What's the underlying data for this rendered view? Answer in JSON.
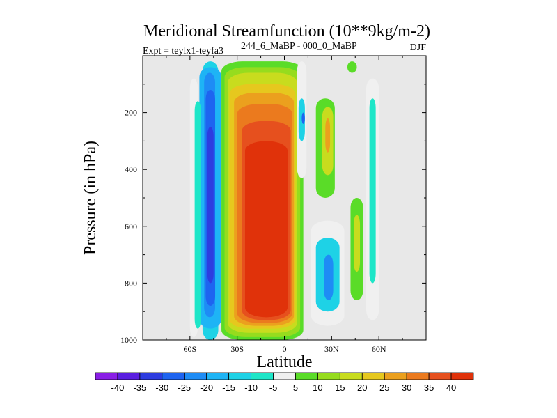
{
  "chart_data": {
    "type": "heatmap",
    "title": "Meridional Streamfunction (10**9kg/m-2)",
    "subtitle_left": "Expt = teylx1-teyfa3",
    "subtitle_super": "244_6_MaBP - 000_0_MaBP",
    "subtitle_right": "DJF",
    "xlabel": "Latitude",
    "ylabel": "Pressure (in hPa)",
    "xlim": [
      -90,
      90
    ],
    "ylim": [
      1000,
      0
    ],
    "x_ticks": [
      {
        "value": -60,
        "label": "60S"
      },
      {
        "value": -30,
        "label": "30S"
      },
      {
        "value": 0,
        "label": "0"
      },
      {
        "value": 30,
        "label": "30N"
      },
      {
        "value": 60,
        "label": "60N"
      }
    ],
    "y_ticks": [
      {
        "value": 200,
        "label": "200"
      },
      {
        "value": 400,
        "label": "400"
      },
      {
        "value": 600,
        "label": "600"
      },
      {
        "value": 800,
        "label": "800"
      },
      {
        "value": 1000,
        "label": "1000"
      }
    ],
    "colorbar": {
      "levels": [
        "-40",
        "-35",
        "-30",
        "-25",
        "-20",
        "-15",
        "-10",
        "-5",
        "5",
        "10",
        "15",
        "20",
        "25",
        "30",
        "35",
        "40"
      ],
      "colors": [
        "#8a1ee6",
        "#5a1ee0",
        "#2d3ce0",
        "#1e64f0",
        "#1e8cf5",
        "#1eb4f5",
        "#1ed2e6",
        "#1ee6c8",
        "#f0f0f0",
        "#5adc28",
        "#96dc1e",
        "#c8dc1e",
        "#e6c81e",
        "#eba01e",
        "#eb7a1e",
        "#e6501e",
        "#e0320a"
      ]
    },
    "cells": [
      {
        "x": [
          -52,
          -42
        ],
        "p": [
          20,
          1000
        ],
        "level": -15
      },
      {
        "x": [
          -54,
          -40
        ],
        "p": [
          40,
          960
        ],
        "level": -20
      },
      {
        "x": [
          -51,
          -44
        ],
        "p": [
          60,
          920
        ],
        "level": -25
      },
      {
        "x": [
          -50,
          -44
        ],
        "p": [
          120,
          880
        ],
        "level": -30
      },
      {
        "x": [
          -49,
          -45
        ],
        "p": [
          250,
          800
        ],
        "level": -35
      },
      {
        "x": [
          -60,
          -55
        ],
        "p": [
          80,
          990
        ],
        "level": -5
      },
      {
        "x": [
          -57,
          -53
        ],
        "p": [
          160,
          960
        ],
        "level": -10
      },
      {
        "x": [
          -40,
          12
        ],
        "p": [
          20,
          1000
        ],
        "level": 5
      },
      {
        "x": [
          -38,
          10
        ],
        "p": [
          40,
          990
        ],
        "level": 10
      },
      {
        "x": [
          -36,
          8
        ],
        "p": [
          60,
          975
        ],
        "level": 15
      },
      {
        "x": [
          -35,
          7
        ],
        "p": [
          100,
          960
        ],
        "level": 20
      },
      {
        "x": [
          -32,
          6
        ],
        "p": [
          130,
          950
        ],
        "level": 25
      },
      {
        "x": [
          -30,
          5
        ],
        "p": [
          170,
          940
        ],
        "level": 30
      },
      {
        "x": [
          -27,
          4
        ],
        "p": [
          230,
          930
        ],
        "level": 35
      },
      {
        "x": [
          -25,
          2
        ],
        "p": [
          300,
          920
        ],
        "level": 40
      },
      {
        "x": [
          8,
          14
        ],
        "p": [
          20,
          430
        ],
        "level": -5
      },
      {
        "x": [
          9,
          13
        ],
        "p": [
          150,
          300
        ],
        "level": -15
      },
      {
        "x": [
          11,
          13
        ],
        "p": [
          200,
          240
        ],
        "level": -30
      },
      {
        "x": [
          20,
          32
        ],
        "p": [
          150,
          500
        ],
        "level": 5
      },
      {
        "x": [
          24,
          31
        ],
        "p": [
          180,
          420
        ],
        "level": 15
      },
      {
        "x": [
          26,
          29
        ],
        "p": [
          220,
          340
        ],
        "level": 25
      },
      {
        "x": [
          17,
          38
        ],
        "p": [
          580,
          950
        ],
        "level": -5
      },
      {
        "x": [
          20,
          35
        ],
        "p": [
          640,
          900
        ],
        "level": -15
      },
      {
        "x": [
          25,
          31
        ],
        "p": [
          700,
          860
        ],
        "level": -25
      },
      {
        "x": [
          42,
          50
        ],
        "p": [
          500,
          860
        ],
        "level": 5
      },
      {
        "x": [
          44,
          48
        ],
        "p": [
          560,
          760
        ],
        "level": 15
      },
      {
        "x": [
          52,
          60
        ],
        "p": [
          80,
          930
        ],
        "level": -5
      },
      {
        "x": [
          54,
          58
        ],
        "p": [
          150,
          800
        ],
        "level": -10
      },
      {
        "x": [
          40,
          46
        ],
        "p": [
          20,
          60
        ],
        "level": 5
      }
    ]
  }
}
